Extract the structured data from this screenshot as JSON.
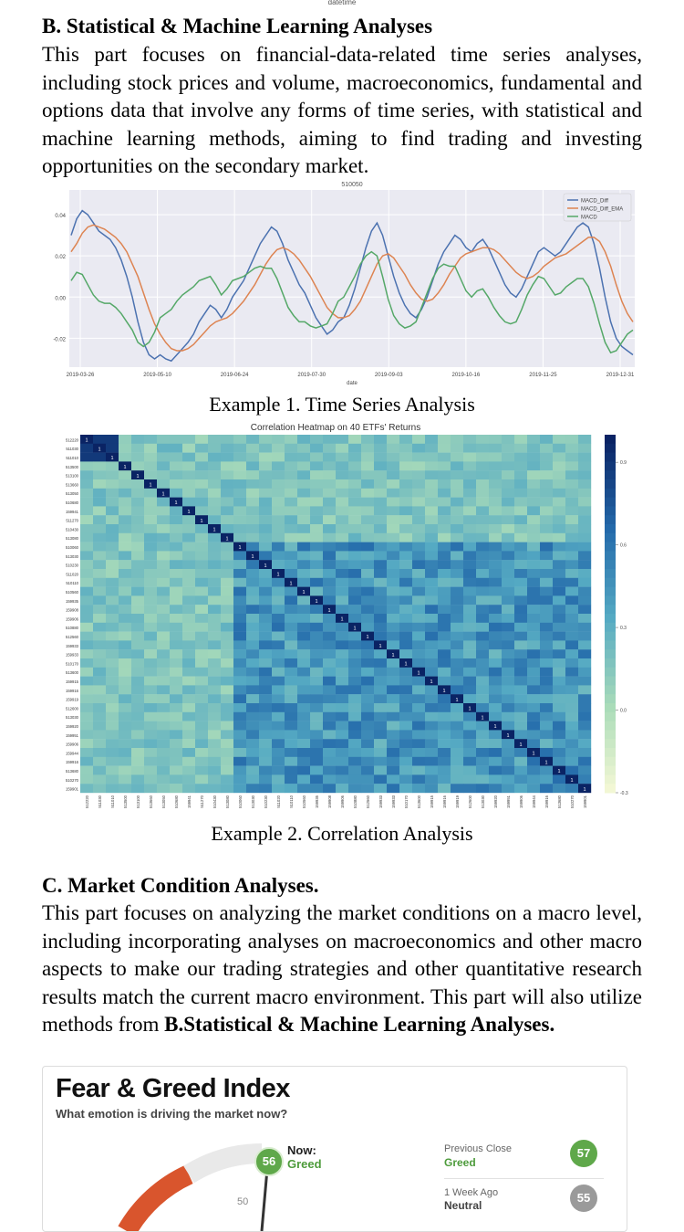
{
  "top_fragment": "datetime",
  "section_b": {
    "heading": "B. Statistical & Machine Learning Analyses",
    "body": "This part focuses on financial-data-related time series analyses, including stock prices and volume, macroeconomics, fundamental and options data that involve any forms of time series, with statistical and machine learning methods, aiming to find trading and investing opportunities on the secondary market."
  },
  "example1": {
    "caption": "Example 1. Time Series Analysis",
    "chart_data": {
      "type": "line",
      "title": "510050",
      "xlabel": "date",
      "ylabel": "",
      "x_ticks": [
        "2019-03-26",
        "2019-05-10",
        "2019-06-24",
        "2019-07-30",
        "2019-09-03",
        "2019-10-16",
        "2019-11-25",
        "2019-12-31"
      ],
      "y_ticks": [
        "0.04",
        "0.02",
        "0.00",
        "-0.02"
      ],
      "ylim": [
        -0.034,
        0.052
      ],
      "legend_position": "top-right",
      "grid": true,
      "series": [
        {
          "name": "MACD_Diff",
          "color": "#4c72b0",
          "values": [
            0.03,
            0.038,
            0.042,
            0.04,
            0.036,
            0.032,
            0.03,
            0.028,
            0.024,
            0.018,
            0.01,
            0.0,
            -0.012,
            -0.022,
            -0.028,
            -0.03,
            -0.028,
            -0.03,
            -0.031,
            -0.028,
            -0.025,
            -0.022,
            -0.018,
            -0.012,
            -0.008,
            -0.004,
            -0.006,
            -0.01,
            -0.006,
            0.0,
            0.004,
            0.008,
            0.014,
            0.02,
            0.026,
            0.03,
            0.034,
            0.032,
            0.026,
            0.018,
            0.012,
            0.006,
            0.002,
            -0.004,
            -0.01,
            -0.014,
            -0.018,
            -0.016,
            -0.012,
            -0.01,
            -0.004,
            0.004,
            0.014,
            0.024,
            0.032,
            0.036,
            0.03,
            0.02,
            0.01,
            0.002,
            -0.004,
            -0.008,
            -0.01,
            -0.006,
            0.0,
            0.008,
            0.016,
            0.022,
            0.026,
            0.03,
            0.028,
            0.024,
            0.022,
            0.026,
            0.028,
            0.024,
            0.018,
            0.012,
            0.006,
            0.002,
            0.0,
            0.004,
            0.01,
            0.016,
            0.022,
            0.024,
            0.022,
            0.02,
            0.022,
            0.026,
            0.03,
            0.034,
            0.036,
            0.034,
            0.026,
            0.014,
            0.0,
            -0.012,
            -0.02,
            -0.024,
            -0.026,
            -0.028
          ]
        },
        {
          "name": "MACD_Diff_EMA",
          "color": "#dd8452",
          "values": [
            0.022,
            0.026,
            0.031,
            0.034,
            0.035,
            0.034,
            0.033,
            0.031,
            0.029,
            0.026,
            0.022,
            0.016,
            0.01,
            0.002,
            -0.006,
            -0.013,
            -0.018,
            -0.022,
            -0.025,
            -0.026,
            -0.026,
            -0.025,
            -0.023,
            -0.02,
            -0.017,
            -0.014,
            -0.012,
            -0.011,
            -0.01,
            -0.008,
            -0.005,
            -0.002,
            0.002,
            0.006,
            0.011,
            0.016,
            0.02,
            0.023,
            0.024,
            0.023,
            0.021,
            0.018,
            0.014,
            0.01,
            0.005,
            0.0,
            -0.005,
            -0.008,
            -0.01,
            -0.01,
            -0.009,
            -0.006,
            -0.002,
            0.004,
            0.01,
            0.016,
            0.02,
            0.021,
            0.019,
            0.015,
            0.011,
            0.006,
            0.002,
            -0.001,
            -0.002,
            -0.001,
            0.002,
            0.006,
            0.011,
            0.015,
            0.019,
            0.021,
            0.022,
            0.023,
            0.024,
            0.024,
            0.023,
            0.021,
            0.018,
            0.015,
            0.012,
            0.01,
            0.009,
            0.01,
            0.012,
            0.015,
            0.017,
            0.019,
            0.02,
            0.021,
            0.023,
            0.025,
            0.027,
            0.029,
            0.029,
            0.027,
            0.022,
            0.015,
            0.006,
            -0.002,
            -0.008,
            -0.012
          ]
        },
        {
          "name": "MACD",
          "color": "#55a868",
          "values": [
            0.008,
            0.012,
            0.011,
            0.006,
            0.001,
            -0.002,
            -0.003,
            -0.003,
            -0.005,
            -0.008,
            -0.012,
            -0.016,
            -0.022,
            -0.024,
            -0.022,
            -0.017,
            -0.01,
            -0.008,
            -0.006,
            -0.002,
            0.001,
            0.003,
            0.005,
            0.008,
            0.009,
            0.01,
            0.006,
            0.001,
            0.004,
            0.008,
            0.009,
            0.01,
            0.012,
            0.014,
            0.015,
            0.014,
            0.014,
            0.009,
            0.002,
            -0.005,
            -0.009,
            -0.012,
            -0.012,
            -0.014,
            -0.015,
            -0.014,
            -0.013,
            -0.008,
            -0.002,
            0.0,
            0.005,
            0.01,
            0.016,
            0.02,
            0.022,
            0.02,
            0.01,
            -0.001,
            -0.009,
            -0.013,
            -0.015,
            -0.014,
            -0.012,
            -0.005,
            0.002,
            0.009,
            0.014,
            0.016,
            0.015,
            0.015,
            0.009,
            0.003,
            0.0,
            0.003,
            0.004,
            0.0,
            -0.005,
            -0.009,
            -0.012,
            -0.013,
            -0.012,
            -0.006,
            0.001,
            0.006,
            0.01,
            0.009,
            0.005,
            0.001,
            0.002,
            0.005,
            0.007,
            0.009,
            0.009,
            0.005,
            -0.003,
            -0.013,
            -0.022,
            -0.027,
            -0.026,
            -0.022,
            -0.018,
            -0.016
          ]
        }
      ]
    }
  },
  "example2": {
    "caption": "Example 2. Correlation Analysis",
    "chart_data": {
      "type": "heatmap",
      "title": "Correlation Heatmap on 40 ETFs' Returns",
      "labels": [
        "512220",
        "511030",
        "511010",
        "513500",
        "513100",
        "513660",
        "513050",
        "510680",
        "159941",
        "511270",
        "510430",
        "513080",
        "510060",
        "513030",
        "510230",
        "511020",
        "510110",
        "510560",
        "159935",
        "159908",
        "159906",
        "510880",
        "512560",
        "159933",
        "159933",
        "510170",
        "513600",
        "159915",
        "159916",
        "159919",
        "512600",
        "513030",
        "159920",
        "159951",
        "159906",
        "159944",
        "159916",
        "513680",
        "510270",
        "159901"
      ],
      "colorbar_ticks": [
        "0.9",
        "0.6",
        "0.3",
        "0.0",
        "-0.3"
      ],
      "diagonal_value": "1",
      "sample_values": [
        "0.96",
        "0.17",
        "0.023",
        "0.018",
        "0.062",
        "0.16",
        "0.15",
        "0.14",
        "0.17",
        "0.25",
        "0.37",
        "0.41",
        "0.46",
        "0.51",
        "0.57",
        "0.62",
        "0.68",
        "0.72"
      ]
    }
  },
  "section_c": {
    "heading": "C. Market Condition Analyses.",
    "body_prefix": "This part focuses on analyzing the market conditions on a macro level, including incorporating analyses on macroeconomics and other macro aspects to make our trading strategies and other quantitative research results match the current macro environment. This part will also utilize methods from ",
    "body_link": "B.Statistical & Machine Learning Analyses."
  },
  "fear_greed": {
    "title": "Fear & Greed Index",
    "subtitle": "What emotion is driving the market now?",
    "now_label": "Now:",
    "now_value": "Greed",
    "now_score": "56",
    "gauge_tick": "50",
    "colors": {
      "greed": "#5fa84a",
      "neutral": "#9a9a9a",
      "fear": "#d9552d"
    },
    "previous_close_label": "Previous Close",
    "previous_close_value": "Greed",
    "previous_close_score": "57",
    "week_ago_label": "1 Week Ago",
    "week_ago_value": "Neutral",
    "week_ago_score": "55"
  }
}
